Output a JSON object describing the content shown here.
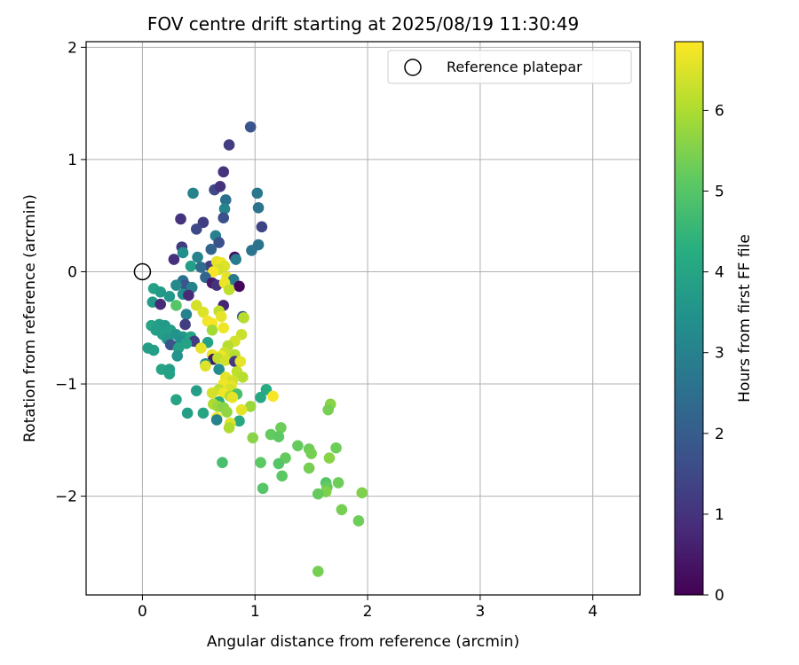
{
  "chart_data": {
    "type": "scatter",
    "title": "FOV centre drift starting at 2025/08/19 11:30:49",
    "xlabel": "Angular distance from reference (arcmin)",
    "ylabel": "Rotation from reference (arcmin)",
    "xlim": [
      -0.5,
      4.42
    ],
    "ylim": [
      -2.88,
      2.05
    ],
    "xticks": [
      0,
      1,
      2,
      3,
      4
    ],
    "yticks": [
      2,
      1,
      0,
      -1,
      -2
    ],
    "xtick_labels": [
      "0",
      "1",
      "2",
      "3",
      "4"
    ],
    "ytick_labels": [
      "2",
      "1",
      "0",
      "−1",
      "−2"
    ],
    "grid": true,
    "colormap": "viridis",
    "colorbar": {
      "label": "Hours from first FF file",
      "range": [
        0,
        6.85
      ],
      "ticks": [
        0,
        1,
        2,
        3,
        4,
        5,
        6
      ],
      "tick_labels": [
        "0",
        "1",
        "2",
        "3",
        "4",
        "5",
        "6"
      ]
    },
    "reference_point": {
      "x": 0,
      "y": 0,
      "legend": "Reference platepar",
      "legend_position": "top-right"
    },
    "points": [
      {
        "x": 0.96,
        "y": 1.29,
        "c": 1.8
      },
      {
        "x": 0.77,
        "y": 1.13,
        "c": 1.2
      },
      {
        "x": 0.72,
        "y": 0.89,
        "c": 1.0
      },
      {
        "x": 0.64,
        "y": 0.73,
        "c": 1.5
      },
      {
        "x": 0.69,
        "y": 0.76,
        "c": 1.0
      },
      {
        "x": 0.45,
        "y": 0.7,
        "c": 3.0
      },
      {
        "x": 1.02,
        "y": 0.7,
        "c": 2.7
      },
      {
        "x": 0.74,
        "y": 0.64,
        "c": 2.5
      },
      {
        "x": 1.03,
        "y": 0.57,
        "c": 2.6
      },
      {
        "x": 0.73,
        "y": 0.56,
        "c": 3.1
      },
      {
        "x": 0.72,
        "y": 0.48,
        "c": 1.7
      },
      {
        "x": 0.34,
        "y": 0.47,
        "c": 1.0
      },
      {
        "x": 0.54,
        "y": 0.44,
        "c": 1.2
      },
      {
        "x": 1.06,
        "y": 0.4,
        "c": 1.4
      },
      {
        "x": 0.48,
        "y": 0.38,
        "c": 1.5
      },
      {
        "x": 0.65,
        "y": 0.32,
        "c": 3.0
      },
      {
        "x": 0.68,
        "y": 0.26,
        "c": 1.7
      },
      {
        "x": 1.03,
        "y": 0.24,
        "c": 2.6
      },
      {
        "x": 0.35,
        "y": 0.22,
        "c": 1.2
      },
      {
        "x": 0.97,
        "y": 0.19,
        "c": 2.6
      },
      {
        "x": 0.61,
        "y": 0.2,
        "c": 2.2
      },
      {
        "x": 0.36,
        "y": 0.17,
        "c": 3.4
      },
      {
        "x": 0.82,
        "y": 0.13,
        "c": 0.2
      },
      {
        "x": 0.28,
        "y": 0.11,
        "c": 0.9
      },
      {
        "x": 0.49,
        "y": 0.13,
        "c": 3.0
      },
      {
        "x": 0.83,
        "y": 0.11,
        "c": 2.9
      },
      {
        "x": 0.43,
        "y": 0.05,
        "c": 3.8
      },
      {
        "x": 0.6,
        "y": 0.05,
        "c": 1.2
      },
      {
        "x": 0.52,
        "y": 0.04,
        "c": 2.4
      },
      {
        "x": 0.66,
        "y": 0.09,
        "c": 6.6
      },
      {
        "x": 0.7,
        "y": 0.08,
        "c": 6.7
      },
      {
        "x": 0.73,
        "y": 0.05,
        "c": 6.5
      },
      {
        "x": 0.68,
        "y": 0.02,
        "c": 6.4
      },
      {
        "x": 0.75,
        "y": -0.05,
        "c": 6.6
      },
      {
        "x": 0.63,
        "y": 0.0,
        "c": 6.8
      },
      {
        "x": 0.56,
        "y": -0.05,
        "c": 2.2
      },
      {
        "x": 0.81,
        "y": -0.07,
        "c": 2.8
      },
      {
        "x": 0.62,
        "y": -0.1,
        "c": 0.5
      },
      {
        "x": 0.66,
        "y": -0.12,
        "c": 1.0
      },
      {
        "x": 0.73,
        "y": -0.1,
        "c": 6.7
      },
      {
        "x": 0.86,
        "y": -0.13,
        "c": 0.1
      },
      {
        "x": 0.77,
        "y": -0.16,
        "c": 6.2
      },
      {
        "x": 0.36,
        "y": -0.08,
        "c": 2.5
      },
      {
        "x": 0.38,
        "y": -0.12,
        "c": 1.8
      },
      {
        "x": 0.3,
        "y": -0.12,
        "c": 3.2
      },
      {
        "x": 0.44,
        "y": -0.14,
        "c": 3.0
      },
      {
        "x": 0.1,
        "y": -0.15,
        "c": 3.9
      },
      {
        "x": 0.16,
        "y": -0.18,
        "c": 3.7
      },
      {
        "x": 0.24,
        "y": -0.22,
        "c": 3.6
      },
      {
        "x": 0.36,
        "y": -0.2,
        "c": 3.4
      },
      {
        "x": 0.41,
        "y": -0.21,
        "c": 0.8
      },
      {
        "x": 0.09,
        "y": -0.27,
        "c": 3.7
      },
      {
        "x": 0.16,
        "y": -0.29,
        "c": 0.8
      },
      {
        "x": 0.3,
        "y": -0.3,
        "c": 5.0
      },
      {
        "x": 0.48,
        "y": -0.3,
        "c": 6.4
      },
      {
        "x": 0.72,
        "y": -0.3,
        "c": 0.7
      },
      {
        "x": 0.54,
        "y": -0.36,
        "c": 6.5
      },
      {
        "x": 0.68,
        "y": -0.35,
        "c": 6.2
      },
      {
        "x": 0.39,
        "y": -0.38,
        "c": 3.0
      },
      {
        "x": 0.7,
        "y": -0.4,
        "c": 6.6
      },
      {
        "x": 0.89,
        "y": -0.4,
        "c": 1.8
      },
      {
        "x": 0.9,
        "y": -0.41,
        "c": 6.1
      },
      {
        "x": 0.58,
        "y": -0.44,
        "c": 6.7
      },
      {
        "x": 0.62,
        "y": -0.46,
        "c": 6.8
      },
      {
        "x": 0.08,
        "y": -0.48,
        "c": 4.0
      },
      {
        "x": 0.15,
        "y": -0.47,
        "c": 3.8
      },
      {
        "x": 0.2,
        "y": -0.48,
        "c": 3.7
      },
      {
        "x": 0.38,
        "y": -0.47,
        "c": 1.2
      },
      {
        "x": 0.62,
        "y": -0.52,
        "c": 5.9
      },
      {
        "x": 0.72,
        "y": -0.5,
        "c": 6.7
      },
      {
        "x": 0.12,
        "y": -0.52,
        "c": 3.8
      },
      {
        "x": 0.25,
        "y": -0.52,
        "c": 3.8
      },
      {
        "x": 0.18,
        "y": -0.56,
        "c": 3.8
      },
      {
        "x": 0.22,
        "y": -0.6,
        "c": 3.6
      },
      {
        "x": 0.3,
        "y": -0.56,
        "c": 3.5
      },
      {
        "x": 0.36,
        "y": -0.58,
        "c": 3.6
      },
      {
        "x": 0.43,
        "y": -0.58,
        "c": 4.0
      },
      {
        "x": 0.46,
        "y": -0.62,
        "c": 1.2
      },
      {
        "x": 0.88,
        "y": -0.56,
        "c": 6.3
      },
      {
        "x": 0.82,
        "y": -0.62,
        "c": 6.4
      },
      {
        "x": 0.34,
        "y": -0.62,
        "c": 3.4
      },
      {
        "x": 0.39,
        "y": -0.64,
        "c": 3.9
      },
      {
        "x": 0.25,
        "y": -0.65,
        "c": 1.8
      },
      {
        "x": 0.32,
        "y": -0.68,
        "c": 3.9
      },
      {
        "x": 0.58,
        "y": -0.63,
        "c": 3.9
      },
      {
        "x": 0.76,
        "y": -0.66,
        "c": 6.1
      },
      {
        "x": 0.52,
        "y": -0.68,
        "c": 6.6
      },
      {
        "x": 0.05,
        "y": -0.68,
        "c": 3.8
      },
      {
        "x": 0.1,
        "y": -0.7,
        "c": 3.8
      },
      {
        "x": 0.73,
        "y": -0.72,
        "c": 6.3
      },
      {
        "x": 0.62,
        "y": -0.74,
        "c": 6.6
      },
      {
        "x": 0.31,
        "y": -0.75,
        "c": 3.5
      },
      {
        "x": 0.7,
        "y": -0.75,
        "c": 6.7
      },
      {
        "x": 0.82,
        "y": -0.74,
        "c": 6.1
      },
      {
        "x": 0.63,
        "y": -0.78,
        "c": 0.4
      },
      {
        "x": 0.67,
        "y": -0.77,
        "c": 6.2
      },
      {
        "x": 0.74,
        "y": -0.79,
        "c": 6.4
      },
      {
        "x": 0.82,
        "y": -0.8,
        "c": 1.1
      },
      {
        "x": 0.87,
        "y": -0.8,
        "c": 6.6
      },
      {
        "x": 0.56,
        "y": -0.82,
        "c": 3.3
      },
      {
        "x": 0.56,
        "y": -0.84,
        "c": 6.5
      },
      {
        "x": 0.17,
        "y": -0.87,
        "c": 4.0
      },
      {
        "x": 0.24,
        "y": -0.87,
        "c": 3.8
      },
      {
        "x": 0.68,
        "y": -0.87,
        "c": 3.3
      },
      {
        "x": 0.84,
        "y": -0.89,
        "c": 6.2
      },
      {
        "x": 0.24,
        "y": -0.91,
        "c": 3.9
      },
      {
        "x": 0.89,
        "y": -0.94,
        "c": 6.1
      },
      {
        "x": 0.74,
        "y": -0.94,
        "c": 6.6
      },
      {
        "x": 0.8,
        "y": -0.97,
        "c": 6.4
      },
      {
        "x": 0.72,
        "y": -1.0,
        "c": 6.7
      },
      {
        "x": 0.79,
        "y": -1.02,
        "c": 6.6
      },
      {
        "x": 0.78,
        "y": -1.05,
        "c": 6.4
      },
      {
        "x": 0.68,
        "y": -1.05,
        "c": 6.2
      },
      {
        "x": 0.48,
        "y": -1.06,
        "c": 3.8
      },
      {
        "x": 1.1,
        "y": -1.05,
        "c": 4.2
      },
      {
        "x": 0.62,
        "y": -1.08,
        "c": 6.4
      },
      {
        "x": 0.72,
        "y": -1.08,
        "c": 6.7
      },
      {
        "x": 0.84,
        "y": -1.09,
        "c": 4.8
      },
      {
        "x": 0.78,
        "y": -1.11,
        "c": 6.0
      },
      {
        "x": 1.16,
        "y": -1.11,
        "c": 6.8
      },
      {
        "x": 0.8,
        "y": -1.12,
        "c": 6.6
      },
      {
        "x": 1.05,
        "y": -1.12,
        "c": 4.1
      },
      {
        "x": 0.3,
        "y": -1.14,
        "c": 4.0
      },
      {
        "x": 0.68,
        "y": -1.16,
        "c": 4.2
      },
      {
        "x": 0.63,
        "y": -1.18,
        "c": 6.0
      },
      {
        "x": 0.67,
        "y": -1.2,
        "c": 5.8
      },
      {
        "x": 0.96,
        "y": -1.2,
        "c": 5.8
      },
      {
        "x": 0.72,
        "y": -1.21,
        "c": 5.6
      },
      {
        "x": 0.88,
        "y": -1.23,
        "c": 6.6
      },
      {
        "x": 0.75,
        "y": -1.25,
        "c": 5.7
      },
      {
        "x": 0.4,
        "y": -1.26,
        "c": 3.8
      },
      {
        "x": 0.54,
        "y": -1.26,
        "c": 4.0
      },
      {
        "x": 0.66,
        "y": -1.3,
        "c": 6.7
      },
      {
        "x": 0.66,
        "y": -1.32,
        "c": 3.0
      },
      {
        "x": 0.86,
        "y": -1.33,
        "c": 4.1
      },
      {
        "x": 0.78,
        "y": -1.35,
        "c": 6.5
      },
      {
        "x": 0.77,
        "y": -1.39,
        "c": 6.0
      },
      {
        "x": 1.23,
        "y": -1.39,
        "c": 5.3
      },
      {
        "x": 1.14,
        "y": -1.45,
        "c": 5.2
      },
      {
        "x": 0.98,
        "y": -1.48,
        "c": 5.6
      },
      {
        "x": 1.21,
        "y": -1.47,
        "c": 5.1
      },
      {
        "x": 1.38,
        "y": -1.55,
        "c": 5.2
      },
      {
        "x": 1.48,
        "y": -1.58,
        "c": 5.3
      },
      {
        "x": 1.72,
        "y": -1.57,
        "c": 5.3
      },
      {
        "x": 1.5,
        "y": -1.62,
        "c": 5.4
      },
      {
        "x": 1.27,
        "y": -1.66,
        "c": 5.2
      },
      {
        "x": 1.66,
        "y": -1.66,
        "c": 5.6
      },
      {
        "x": 0.71,
        "y": -1.7,
        "c": 4.8
      },
      {
        "x": 1.05,
        "y": -1.7,
        "c": 5.1
      },
      {
        "x": 1.21,
        "y": -1.71,
        "c": 5.0
      },
      {
        "x": 1.48,
        "y": -1.75,
        "c": 5.4
      },
      {
        "x": 1.24,
        "y": -1.82,
        "c": 5.1
      },
      {
        "x": 1.63,
        "y": -1.88,
        "c": 5.0
      },
      {
        "x": 1.74,
        "y": -1.88,
        "c": 5.3
      },
      {
        "x": 1.64,
        "y": -1.92,
        "c": 5.2
      },
      {
        "x": 1.07,
        "y": -1.93,
        "c": 5.0
      },
      {
        "x": 1.63,
        "y": -1.96,
        "c": 5.5
      },
      {
        "x": 1.95,
        "y": -1.97,
        "c": 5.5
      },
      {
        "x": 1.56,
        "y": -1.98,
        "c": 5.2
      },
      {
        "x": 1.77,
        "y": -2.12,
        "c": 5.4
      },
      {
        "x": 1.92,
        "y": -2.22,
        "c": 5.3
      },
      {
        "x": 1.56,
        "y": -2.67,
        "c": 5.4
      },
      {
        "x": 1.67,
        "y": -1.18,
        "c": 5.6
      },
      {
        "x": 1.65,
        "y": -1.23,
        "c": 5.4
      }
    ]
  }
}
